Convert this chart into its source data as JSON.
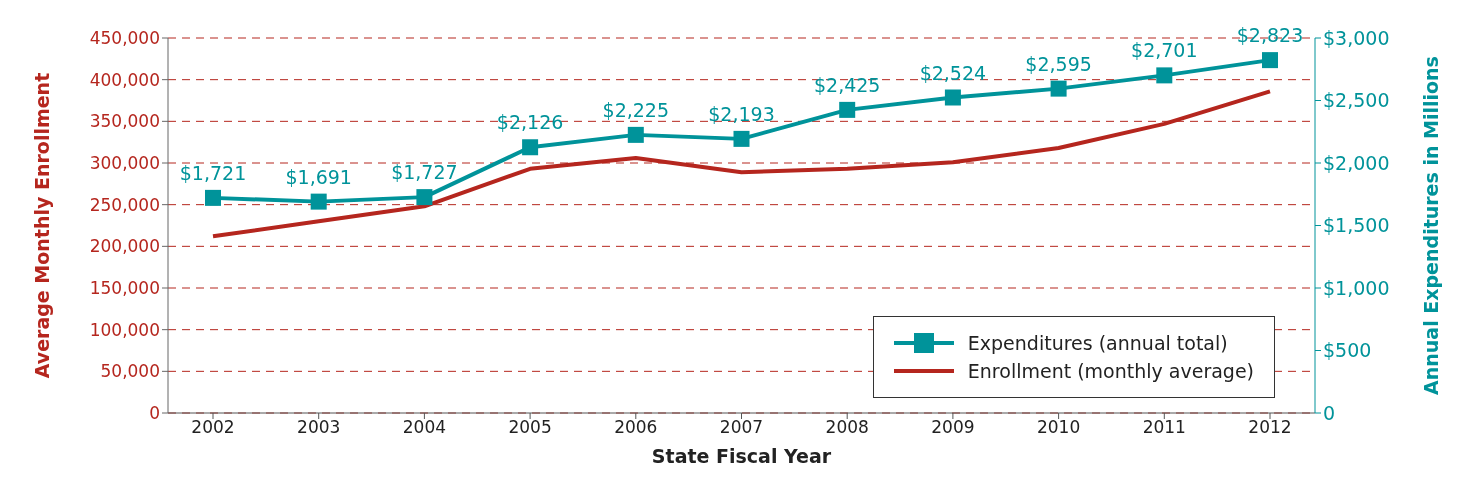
{
  "chart_data": {
    "type": "line",
    "xlabel": "State Fiscal Year",
    "ylabel": "Average Monthly Enrollment",
    "y2label": "Annual Expenditures in Millions",
    "categories": [
      "2002",
      "2003",
      "2004",
      "2005",
      "2006",
      "2007",
      "2008",
      "2009",
      "2010",
      "2011",
      "2012"
    ],
    "series": [
      {
        "name": "Expenditures (annual total)",
        "color": "#00939a",
        "axis": "y2",
        "marker": "square",
        "values": [
          1721,
          1691,
          1727,
          2126,
          2225,
          2193,
          2425,
          2524,
          2595,
          2701,
          2823
        ],
        "value_labels": [
          "$1,721",
          "$1,691",
          "$1,727",
          "$2,126",
          "$2,225",
          "$2,193",
          "$2,425",
          "$2,524",
          "$2,595",
          "$2,701",
          "$2,823"
        ]
      },
      {
        "name": "Enrollment (monthly average)",
        "color": "#b5261e",
        "marker": "none",
        "values": [
          212000,
          230000,
          248000,
          293000,
          306000,
          289000,
          293000,
          301000,
          318000,
          347000,
          386000
        ]
      }
    ],
    "ylim": [
      0,
      450000
    ],
    "yticks": [
      0,
      {
        "value": 50000,
        "label": "50,000"
      },
      {
        "value": 100000,
        "label": "100,000"
      },
      {
        "value": 150000,
        "label": "150,000"
      },
      {
        "value": 200000,
        "label": "200,000"
      },
      {
        "value": 250000,
        "label": "250,000"
      },
      {
        "value": 300000,
        "label": "300,000"
      },
      {
        "value": 350000,
        "label": "350,000"
      },
      {
        "value": 400000,
        "label": "400,000"
      },
      {
        "value": 450000,
        "label": "450,000"
      }
    ],
    "y2lim": [
      0,
      3000
    ],
    "y2ticks": [
      0,
      {
        "value": 500,
        "label": "$500"
      },
      {
        "value": 1000,
        "label": "$1,000"
      },
      {
        "value": 1500,
        "label": "$1,500"
      },
      {
        "value": 2000,
        "label": "$2,000"
      },
      {
        "value": 2500,
        "label": "$2,500"
      },
      {
        "value": 3000,
        "label": "$3,000"
      }
    ],
    "grid": "y",
    "legend": "bottom right"
  }
}
